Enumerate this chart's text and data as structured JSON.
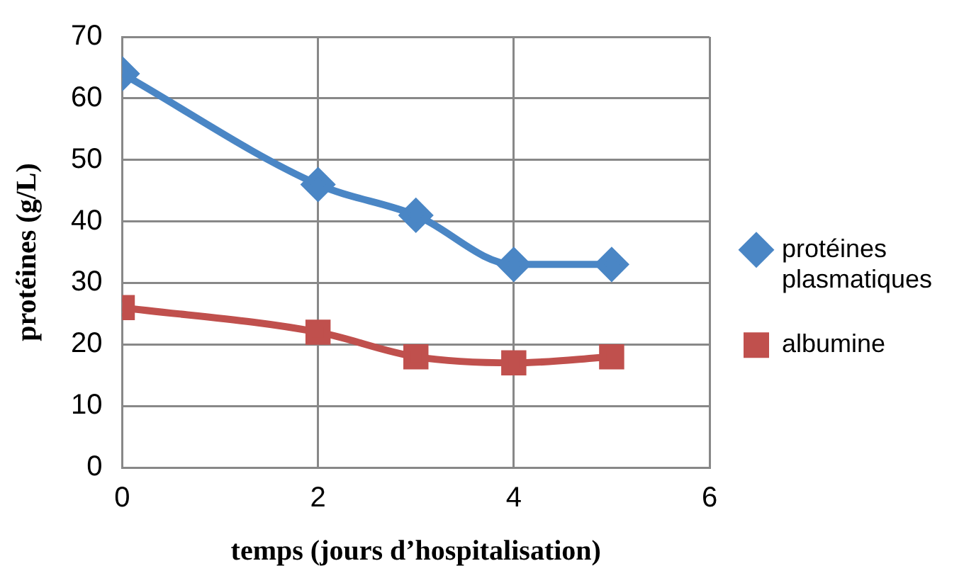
{
  "chart_data": {
    "type": "line",
    "xlabel": "temps (jours d’hospitalisation)",
    "ylabel": "protéines (g/L)",
    "x": [
      0,
      2,
      3,
      4,
      5
    ],
    "series": [
      {
        "name": "protéines plasmatiques",
        "color": "#4a86c5",
        "marker": "diamond",
        "values": [
          64,
          46,
          41,
          33,
          33
        ]
      },
      {
        "name": "albumine",
        "color": "#c0504d",
        "marker": "square",
        "values": [
          26,
          22,
          18,
          17,
          18
        ]
      }
    ],
    "xlim": [
      0,
      6
    ],
    "xticks": [
      0,
      2,
      4,
      6
    ],
    "ylim": [
      0,
      70
    ],
    "yticks": [
      0,
      10,
      20,
      30,
      40,
      50,
      60,
      70
    ],
    "grid": true,
    "legend": "right"
  }
}
